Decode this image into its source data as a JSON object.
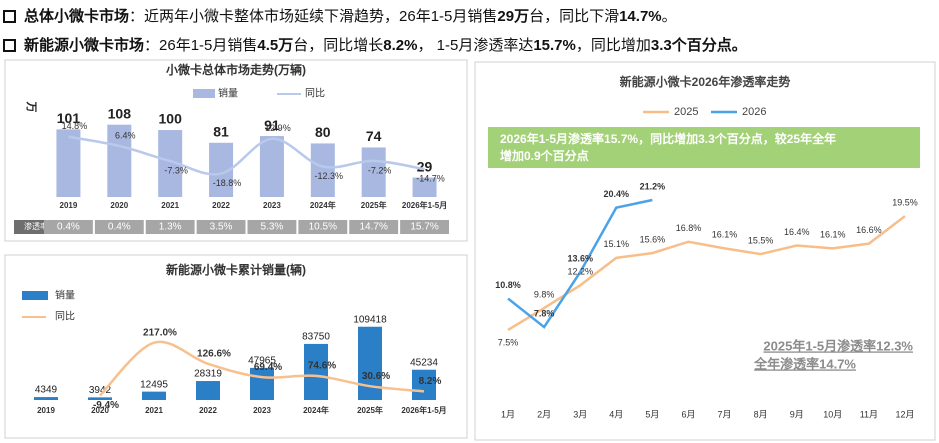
{
  "header": {
    "lines": [
      [
        {
          "text": "总体小微卡市场",
          "bold": true
        },
        {
          "text": "：近两年小微卡整体市场延续下滑趋势，26年1-5月销售",
          "bold": false
        },
        {
          "text": "29万",
          "bold": true
        },
        {
          "text": "台，同比下滑",
          "bold": false
        },
        {
          "text": "14.7%",
          "bold": true
        },
        {
          "text": "。",
          "bold": false
        }
      ],
      [
        {
          "text": "新能源小微卡市场",
          "bold": true
        },
        {
          "text": "：26年1-5月销售",
          "bold": false
        },
        {
          "text": "4.5万",
          "bold": true
        },
        {
          "text": "台，同比增长",
          "bold": false
        },
        {
          "text": "8.2%",
          "bold": true
        },
        {
          "text": "，  1-5月渗透率达",
          "bold": false
        },
        {
          "text": "15.7%",
          "bold": true
        },
        {
          "text": "，同比增加",
          "bold": false
        },
        {
          "text": "3.3个百分点。",
          "bold": true
        }
      ]
    ]
  },
  "chart_data": [
    {
      "type": "bar",
      "title": "小微卡总体市场走势(万辆)",
      "y_label": "万",
      "categories": [
        "2019",
        "2020",
        "2021",
        "2022",
        "2023",
        "2024年",
        "2025年",
        "2026年1-5月"
      ],
      "ylim": [
        0,
        115
      ],
      "y2lim": [
        -40,
        30
      ],
      "series": [
        {
          "name": "销量",
          "color": "#a9b8e0",
          "values": [
            101,
            108,
            100,
            81,
            91,
            80,
            74,
            29
          ]
        },
        {
          "name": "同比",
          "color": "#b9c9ec",
          "axis": "y2",
          "values": [
            14.8,
            6.4,
            -7.3,
            -18.8,
            12.9,
            -12.3,
            -7.2,
            -14.7
          ],
          "value_labels": [
            "14.8%",
            "6.4%",
            "-7.3%",
            "-18.8%",
            "12.9%",
            "-12.3%",
            "-7.2%",
            "-14.7%"
          ]
        }
      ],
      "penetration": {
        "label": "渗透率",
        "values": [
          0.4,
          0.4,
          1.3,
          3.5,
          5.3,
          10.5,
          14.7,
          15.7
        ],
        "value_labels": [
          "0.4%",
          "0.4%",
          "1.3%",
          "3.5%",
          "5.3%",
          "10.5%",
          "14.7%",
          "15.7%"
        ]
      }
    },
    {
      "type": "bar",
      "title": "新能源小微卡累计销量(辆)",
      "categories": [
        "2019",
        "2020",
        "2021",
        "2022",
        "2023",
        "2024年",
        "2025年",
        "2026年1-5月"
      ],
      "ylim": [
        0,
        115000
      ],
      "y2lim": [
        -50,
        250
      ],
      "series": [
        {
          "name": "销量",
          "color": "#2a7fc6",
          "values": [
            4349,
            3942,
            12495,
            28319,
            47965,
            83750,
            109418,
            45234
          ]
        },
        {
          "name": "同比",
          "color": "#f8c08e",
          "axis": "y2",
          "values": [
            null,
            -9.4,
            217.0,
            126.6,
            69.4,
            74.6,
            30.6,
            8.2
          ],
          "value_labels": [
            null,
            "-9.4%",
            "217.0%",
            "126.6%",
            "69.4%",
            "74.6%",
            "30.6%",
            "8.2%"
          ]
        }
      ]
    },
    {
      "type": "line",
      "title": "新能源小微卡2026年渗透率走势",
      "categories": [
        "1月",
        "2月",
        "3月",
        "4月",
        "5月",
        "6月",
        "7月",
        "8月",
        "9月",
        "10月",
        "11月",
        "12月"
      ],
      "ylim": [
        0,
        25
      ],
      "series": [
        {
          "name": "2025",
          "color": "#f8be8a",
          "values": [
            7.5,
            9.8,
            12.2,
            15.1,
            15.6,
            16.8,
            16.1,
            15.5,
            16.4,
            16.1,
            16.6,
            19.5
          ],
          "value_labels": [
            "7.5%",
            "9.8%",
            "12.2%",
            "15.1%",
            "15.6%",
            "16.8%",
            "16.1%",
            "15.5%",
            "16.4%",
            "16.1%",
            "16.6%",
            "19.5%"
          ]
        },
        {
          "name": "2026",
          "color": "#4aa3e8",
          "values": [
            10.8,
            7.8,
            13.6,
            20.4,
            21.2,
            null,
            null,
            null,
            null,
            null,
            null,
            null
          ],
          "value_labels": [
            "10.8%",
            "7.8%",
            "13.6%",
            "20.4%",
            "21.2%",
            null,
            null,
            null,
            null,
            null,
            null,
            null
          ]
        }
      ],
      "annotations": [
        "2026年1-5月渗透率15.7%，同比增加3.3个百分点，较25年全年",
        "增加0.9个百分点",
        "2025年1-5月渗透率12.3%",
        "全年渗透率14.7%"
      ]
    }
  ]
}
